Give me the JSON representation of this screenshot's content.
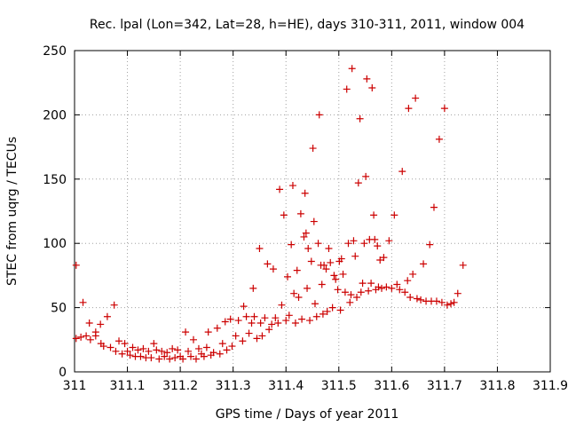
{
  "chart_data": {
    "type": "scatter",
    "title": "Rec. lpal (Lon=342, Lat=28, h=HE), days 310-311, 2011, window 004",
    "xlabel": "GPS time / Days of year 2011",
    "ylabel": "STEC from uqrg / TECUs",
    "xlim": [
      311,
      311.9
    ],
    "ylim": [
      0,
      250
    ],
    "x_ticks": [
      "311",
      "311.1",
      "311.2",
      "311.3",
      "311.4",
      "311.5",
      "311.6",
      "311.7",
      "311.8",
      "311.9"
    ],
    "y_ticks": [
      "0",
      "50",
      "100",
      "150",
      "200",
      "250"
    ],
    "grid": true,
    "marker": "+",
    "color": "#cc0000",
    "series": [
      {
        "points": [
          [
            311.003,
            83
          ],
          [
            311.003,
            26
          ],
          [
            311.012,
            27
          ],
          [
            311.016,
            54
          ],
          [
            311.022,
            28
          ],
          [
            311.028,
            38
          ],
          [
            311.03,
            25
          ],
          [
            311.04,
            31
          ],
          [
            311.04,
            28
          ],
          [
            311.049,
            37
          ],
          [
            311.05,
            22
          ],
          [
            311.055,
            20
          ],
          [
            311.062,
            43
          ],
          [
            311.068,
            19
          ],
          [
            311.075,
            52
          ],
          [
            311.078,
            16
          ],
          [
            311.084,
            24
          ],
          [
            311.09,
            14
          ],
          [
            311.095,
            22
          ],
          [
            311.1,
            16
          ],
          [
            311.105,
            13
          ],
          [
            311.11,
            19
          ],
          [
            311.115,
            12
          ],
          [
            311.12,
            17
          ],
          [
            311.125,
            12
          ],
          [
            311.13,
            18
          ],
          [
            311.135,
            11
          ],
          [
            311.14,
            16
          ],
          [
            311.145,
            11
          ],
          [
            311.15,
            22
          ],
          [
            311.155,
            17
          ],
          [
            311.16,
            10
          ],
          [
            311.165,
            16
          ],
          [
            311.17,
            12
          ],
          [
            311.175,
            15
          ],
          [
            311.18,
            10
          ],
          [
            311.185,
            18
          ],
          [
            311.19,
            11
          ],
          [
            311.195,
            17
          ],
          [
            311.2,
            12
          ],
          [
            311.205,
            10
          ],
          [
            311.21,
            31
          ],
          [
            311.215,
            16
          ],
          [
            311.22,
            12
          ],
          [
            311.225,
            25
          ],
          [
            311.23,
            10
          ],
          [
            311.235,
            18
          ],
          [
            311.24,
            14
          ],
          [
            311.245,
            12
          ],
          [
            311.25,
            19
          ],
          [
            311.253,
            31
          ],
          [
            311.258,
            13
          ],
          [
            311.263,
            15
          ],
          [
            311.27,
            34
          ],
          [
            311.275,
            14
          ],
          [
            311.28,
            22
          ],
          [
            311.285,
            39
          ],
          [
            311.288,
            17
          ],
          [
            311.295,
            41
          ],
          [
            311.298,
            20
          ],
          [
            311.305,
            28
          ],
          [
            311.31,
            40
          ],
          [
            311.318,
            24
          ],
          [
            311.32,
            51
          ],
          [
            311.325,
            43
          ],
          [
            311.33,
            30
          ],
          [
            311.335,
            38
          ],
          [
            311.338,
            65
          ],
          [
            311.34,
            43
          ],
          [
            311.345,
            26
          ],
          [
            311.35,
            96
          ],
          [
            311.352,
            38
          ],
          [
            311.355,
            28
          ],
          [
            311.36,
            42
          ],
          [
            311.365,
            84
          ],
          [
            311.368,
            33
          ],
          [
            311.373,
            37
          ],
          [
            311.376,
            80
          ],
          [
            311.38,
            42
          ],
          [
            311.385,
            38
          ],
          [
            311.388,
            142
          ],
          [
            311.392,
            52
          ],
          [
            311.396,
            122
          ],
          [
            311.4,
            40
          ],
          [
            311.403,
            74
          ],
          [
            311.406,
            44
          ],
          [
            311.41,
            99
          ],
          [
            311.413,
            145
          ],
          [
            311.415,
            61
          ],
          [
            311.418,
            38
          ],
          [
            311.421,
            79
          ],
          [
            311.424,
            58
          ],
          [
            311.428,
            123
          ],
          [
            311.43,
            41
          ],
          [
            311.434,
            105
          ],
          [
            311.436,
            139
          ],
          [
            311.438,
            108
          ],
          [
            311.44,
            65
          ],
          [
            311.442,
            96
          ],
          [
            311.445,
            40
          ],
          [
            311.448,
            86
          ],
          [
            311.451,
            174
          ],
          [
            311.453,
            117
          ],
          [
            311.455,
            53
          ],
          [
            311.458,
            43
          ],
          [
            311.461,
            100
          ],
          [
            311.463,
            200
          ],
          [
            311.466,
            83
          ],
          [
            311.468,
            68
          ],
          [
            311.47,
            45
          ],
          [
            311.472,
            83
          ],
          [
            311.476,
            80
          ],
          [
            311.478,
            47
          ],
          [
            311.481,
            96
          ],
          [
            311.484,
            85
          ],
          [
            311.488,
            50
          ],
          [
            311.491,
            75
          ],
          [
            311.494,
            72
          ],
          [
            311.498,
            64
          ],
          [
            311.501,
            86
          ],
          [
            311.503,
            48
          ],
          [
            311.505,
            88
          ],
          [
            311.508,
            76
          ],
          [
            311.512,
            62
          ],
          [
            311.515,
            220
          ],
          [
            311.518,
            100
          ],
          [
            311.521,
            54
          ],
          [
            311.523,
            60
          ],
          [
            311.525,
            236
          ],
          [
            311.528,
            102
          ],
          [
            311.531,
            90
          ],
          [
            311.534,
            58
          ],
          [
            311.537,
            147
          ],
          [
            311.54,
            197
          ],
          [
            311.542,
            62
          ],
          [
            311.545,
            69
          ],
          [
            311.548,
            100
          ],
          [
            311.551,
            152
          ],
          [
            311.553,
            228
          ],
          [
            311.556,
            63
          ],
          [
            311.558,
            103
          ],
          [
            311.561,
            69
          ],
          [
            311.563,
            221
          ],
          [
            311.566,
            122
          ],
          [
            311.568,
            103
          ],
          [
            311.57,
            64
          ],
          [
            311.573,
            98
          ],
          [
            311.575,
            66
          ],
          [
            311.578,
            87
          ],
          [
            311.581,
            65
          ],
          [
            311.585,
            89
          ],
          [
            311.59,
            66
          ],
          [
            311.595,
            102
          ],
          [
            311.6,
            65
          ],
          [
            311.605,
            122
          ],
          [
            311.61,
            68
          ],
          [
            311.615,
            64
          ],
          [
            311.62,
            156
          ],
          [
            311.625,
            62
          ],
          [
            311.63,
            71
          ],
          [
            311.632,
            205
          ],
          [
            311.635,
            58
          ],
          [
            311.64,
            76
          ],
          [
            311.645,
            213
          ],
          [
            311.648,
            57
          ],
          [
            311.655,
            56
          ],
          [
            311.66,
            84
          ],
          [
            311.665,
            55
          ],
          [
            311.672,
            99
          ],
          [
            311.675,
            55
          ],
          [
            311.68,
            128
          ],
          [
            311.685,
            55
          ],
          [
            311.69,
            181
          ],
          [
            311.695,
            54
          ],
          [
            311.7,
            205
          ],
          [
            311.705,
            52
          ],
          [
            311.712,
            53
          ],
          [
            311.718,
            54
          ],
          [
            311.725,
            61
          ],
          [
            311.735,
            83
          ]
        ]
      }
    ]
  }
}
